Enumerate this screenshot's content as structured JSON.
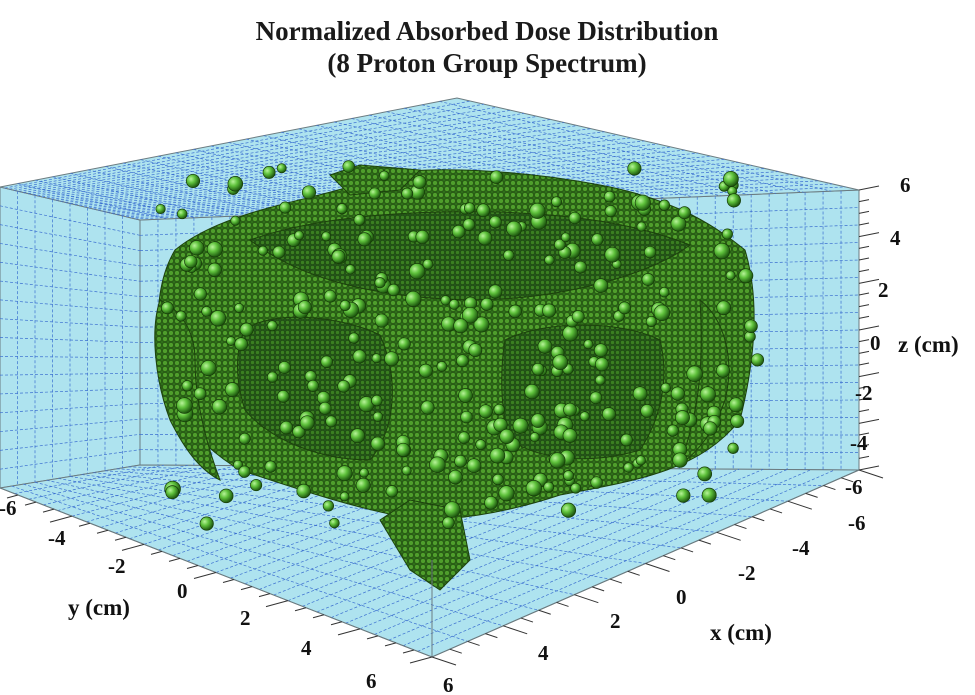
{
  "chart_data": {
    "type": "scatter3d",
    "title_lines": [
      "Normalized Absorbed Dose Distribution",
      "(8 Proton Group Spectrum)"
    ],
    "xlabel": "x (cm)",
    "ylabel": "y (cm)",
    "zlabel": "z (cm)",
    "xlim": [
      -6,
      6
    ],
    "ylim": [
      -6,
      6
    ],
    "zlim": [
      -6,
      6
    ],
    "x_ticks": [
      "-6",
      "-4",
      "-2",
      "0",
      "2",
      "4",
      "6"
    ],
    "y_ticks": [
      "-6",
      "-4",
      "-2",
      "0",
      "2",
      "4",
      "6"
    ],
    "z_ticks": [
      "-6",
      "-4",
      "-2",
      "0",
      "2",
      "4",
      "6"
    ],
    "grid": true,
    "colors": {
      "background_panes": "#aee3ef",
      "grid": "#3b6fd0",
      "marker": "#3e8f22",
      "marker_highlight": "#8ee06a",
      "marker_dark": "#1f4d10"
    },
    "series": [
      {
        "marker": "sphere",
        "shape_description": "cubic dose isosurface with rounded edges, central faces concave, wing-like lobes protruding at each corner and face centers",
        "extent_x": [
          -5.5,
          5.5
        ],
        "extent_y": [
          -5.5,
          5.5
        ],
        "extent_z": [
          -5.5,
          5.5
        ]
      }
    ]
  }
}
